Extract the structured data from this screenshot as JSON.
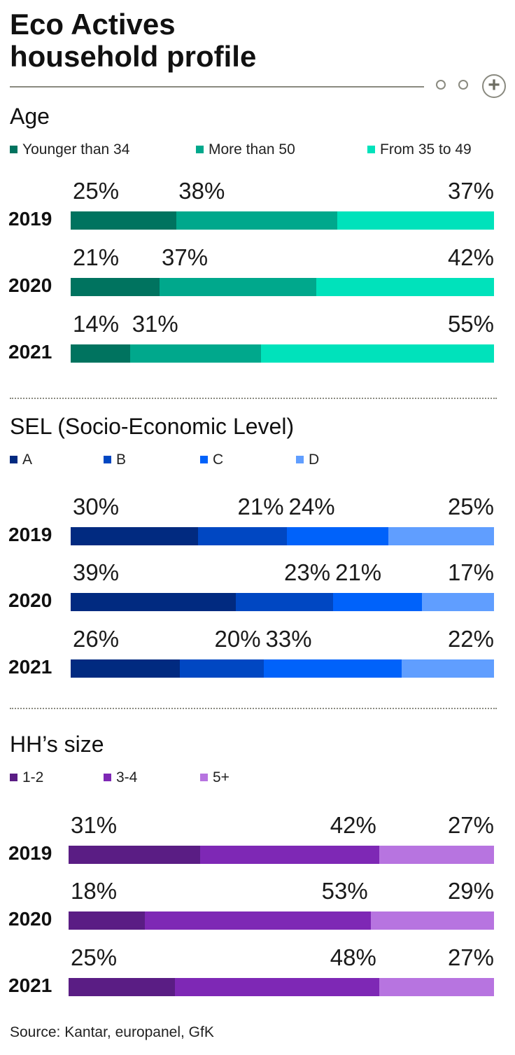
{
  "title_line1": "Eco Actives",
  "title_line2": "household profile",
  "source": "Source: Kantar, europanel, GfK",
  "chart_data": [
    {
      "type": "bar",
      "title": "Age",
      "stacked": true,
      "orientation": "horizontal",
      "categories": [
        "2019",
        "2020",
        "2021"
      ],
      "series": [
        {
          "name": "Younger than 34",
          "values": [
            25,
            21,
            14
          ],
          "color": "#00735f"
        },
        {
          "name": "More than 50",
          "values": [
            38,
            37,
            31
          ],
          "color": "#00a88c"
        },
        {
          "name": "From 35 to 49",
          "values": [
            37,
            42,
            55
          ],
          "color": "#00e2bb"
        }
      ],
      "labels": [
        [
          "25%",
          "38%",
          "37%"
        ],
        [
          "21%",
          "37%",
          "42%"
        ],
        [
          "14%",
          "31%",
          "55%"
        ]
      ]
    },
    {
      "type": "bar",
      "title": "SEL (Socio-Economic Level)",
      "stacked": true,
      "orientation": "horizontal",
      "categories": [
        "2019",
        "2020",
        "2021"
      ],
      "series": [
        {
          "name": "A",
          "values": [
            30,
            39,
            26
          ],
          "color": "#012a80"
        },
        {
          "name": "B",
          "values": [
            21,
            23,
            20
          ],
          "color": "#0047c2"
        },
        {
          "name": "C",
          "values": [
            24,
            21,
            33
          ],
          "color": "#0062fa"
        },
        {
          "name": "D",
          "values": [
            25,
            17,
            22
          ],
          "color": "#609eff"
        }
      ],
      "labels": [
        [
          "30%",
          "21%",
          "24%",
          "25%"
        ],
        [
          "39%",
          "23%",
          "21%",
          "17%"
        ],
        [
          "26%",
          "20%",
          "33%",
          "22%"
        ]
      ]
    },
    {
      "type": "bar",
      "title": "HH’s size",
      "stacked": true,
      "orientation": "horizontal",
      "categories": [
        "2019",
        "2020",
        "2021"
      ],
      "series": [
        {
          "name": "1-2",
          "values": [
            31,
            18,
            25
          ],
          "color": "#5a1d84"
        },
        {
          "name": "3-4",
          "values": [
            42,
            53,
            48
          ],
          "color": "#7e28b5"
        },
        {
          "name": "5+",
          "values": [
            27,
            29,
            27
          ],
          "color": "#b774e0"
        }
      ],
      "labels": [
        [
          "31%",
          "42%",
          "27%"
        ],
        [
          "18%",
          "53%",
          "29%"
        ],
        [
          "25%",
          "48%",
          "27%"
        ]
      ]
    }
  ]
}
